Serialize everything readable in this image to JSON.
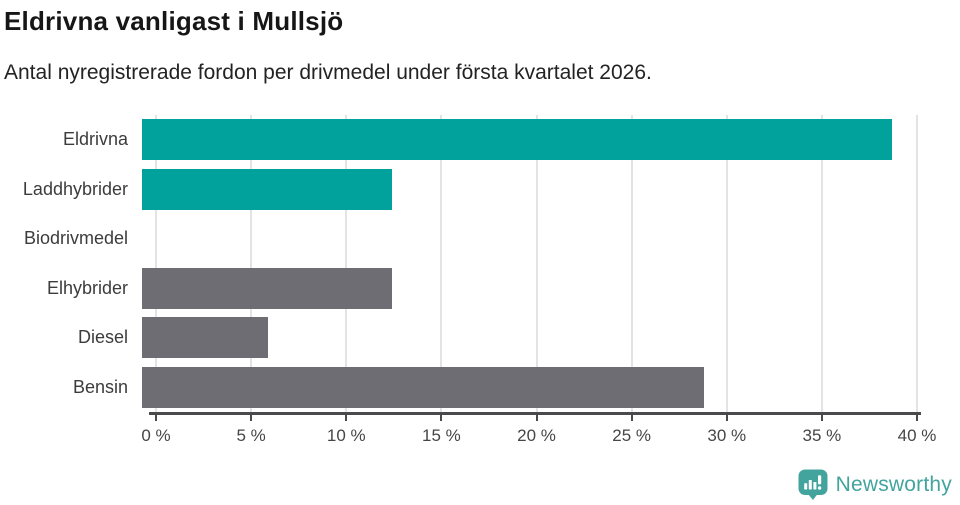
{
  "header": {
    "title": "Eldrivna vanligast i Mullsjö",
    "subtitle": "Antal nyregistrerade fordon per drivmedel under första kvartalet 2026."
  },
  "chart_data": {
    "type": "bar",
    "orientation": "horizontal",
    "title": "Eldrivna vanligast i Mullsjö",
    "subtitle": "Antal nyregistrerade fordon per drivmedel under första kvartalet 2026.",
    "categories": [
      "Eldrivna",
      "Laddhybrider",
      "Biodrivmedel",
      "Elhybrider",
      "Diesel",
      "Bensin"
    ],
    "values": [
      38.7,
      12.9,
      0,
      12.9,
      6.5,
      29.0
    ],
    "unit": "%",
    "bar_colors": [
      "#00a29b",
      "#00a29b",
      "#00a29b",
      "#6d6d73",
      "#6d6d73",
      "#6d6d73"
    ],
    "xlim": [
      0,
      40
    ],
    "x_ticks": [
      0,
      5,
      10,
      15,
      20,
      25,
      30,
      35,
      40
    ],
    "x_tick_labels": [
      "0 %",
      "5 %",
      "10 %",
      "15 %",
      "20 %",
      "25 %",
      "30 %",
      "35 %",
      "40 %"
    ],
    "grid": "vertical",
    "legend": "none",
    "colors": {
      "highlight": "#00a29b",
      "default": "#6d6d73",
      "gridline": "#e3e3e3",
      "axis": "#4a4a4d"
    }
  },
  "footer": {
    "brand": "Newsworthy",
    "brand_color": "#43a49e",
    "logo_icon": "newsworthy-speech-bubble-chart-icon"
  }
}
